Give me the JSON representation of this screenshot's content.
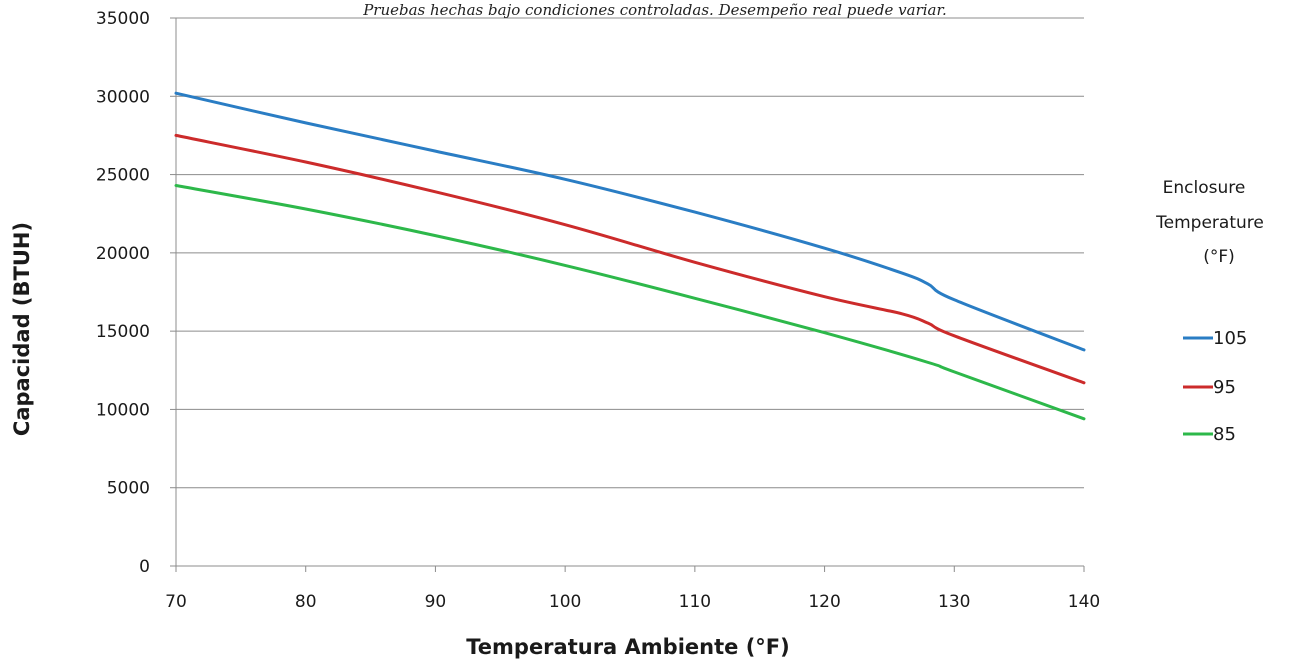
{
  "chart_data": {
    "type": "line",
    "note": "Pruebas hechas bajo condiciones controladas. Desempeño real puede variar.",
    "xlabel": "Temperatura Ambiente (°F)",
    "ylabel": "Capacidad (BTUH)",
    "xlim": [
      70,
      140
    ],
    "ylim": [
      0,
      35000
    ],
    "x_ticks": [
      "70",
      "80",
      "90",
      "100",
      "110",
      "120",
      "130",
      "140"
    ],
    "y_ticks": [
      "0",
      "5000",
      "10000",
      "15000",
      "20000",
      "25000",
      "30000",
      "35000"
    ],
    "grid": true,
    "legend_position": "right",
    "legend_title": [
      "Enclosure",
      "Temperature",
      "(°F)"
    ],
    "series": [
      {
        "name": "105",
        "color": "#2a7dc4",
        "x": [
          70,
          80,
          90,
          100,
          110,
          120,
          126,
          128,
          130,
          140
        ],
        "y": [
          30200,
          28300,
          26500,
          24700,
          22600,
          20300,
          18700,
          18000,
          17000,
          13800
        ]
      },
      {
        "name": "95",
        "color": "#cc2b2b",
        "x": [
          70,
          80,
          90,
          100,
          110,
          120,
          126,
          128,
          130,
          140
        ],
        "y": [
          27500,
          25800,
          23900,
          21800,
          19400,
          17200,
          16100,
          15500,
          14700,
          11700
        ]
      },
      {
        "name": "85",
        "color": "#2db84a",
        "x": [
          70,
          80,
          90,
          100,
          110,
          120,
          128,
          130,
          140
        ],
        "y": [
          24300,
          22800,
          21100,
          19200,
          17100,
          14900,
          13000,
          12400,
          9400
        ]
      }
    ]
  }
}
